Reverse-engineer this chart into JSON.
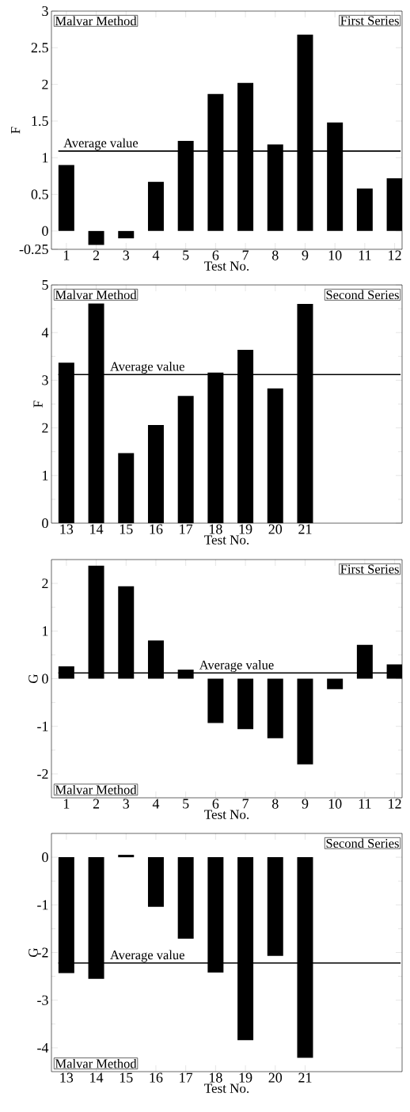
{
  "chart_data": [
    {
      "type": "bar",
      "xlabel": "Test No.",
      "ylabel": "F",
      "color": "#000000",
      "x": [
        1,
        2,
        3,
        4,
        5,
        6,
        7,
        8,
        9,
        10,
        11,
        12
      ],
      "values": [
        0.9,
        -0.19,
        -0.1,
        0.67,
        1.23,
        1.87,
        2.02,
        1.18,
        2.68,
        1.48,
        0.58,
        0.72
      ],
      "xlim": [
        0.5,
        12.25
      ],
      "ylim": [
        -0.25,
        3
      ],
      "xticks": [
        1,
        2,
        3,
        4,
        5,
        6,
        7,
        8,
        9,
        10,
        11,
        12
      ],
      "yticks": [
        -0.25,
        0,
        0.5,
        1,
        1.5,
        2,
        2.5,
        3
      ],
      "annotations": [
        "Malvar Method",
        "First Series"
      ],
      "ref_lines": [
        {
          "axis": "y",
          "value": 1.09,
          "label": "Average value"
        }
      ]
    },
    {
      "type": "bar",
      "xlabel": "Test No.",
      "ylabel": "F",
      "color": "#000000",
      "x": [
        13,
        14,
        15,
        16,
        17,
        18,
        19,
        20,
        21
      ],
      "values": [
        3.37,
        4.61,
        1.47,
        2.06,
        2.67,
        3.16,
        3.64,
        2.83,
        4.6
      ],
      "xlim": [
        12.5,
        24.25
      ],
      "ylim": [
        0,
        5
      ],
      "xticks": [
        13,
        14,
        15,
        16,
        17,
        18,
        19,
        20,
        21
      ],
      "yticks": [
        0,
        1,
        2,
        3,
        4,
        5
      ],
      "annotations": [
        "Malvar Method",
        "Second Series"
      ],
      "ref_lines": [
        {
          "axis": "y",
          "value": 3.12,
          "label": "Average value"
        }
      ]
    },
    {
      "type": "bar",
      "xlabel": "Test No.",
      "ylabel": "G",
      "color": "#000000",
      "x": [
        1,
        2,
        3,
        4,
        5,
        6,
        7,
        8,
        9,
        10,
        11,
        12
      ],
      "values": [
        0.26,
        2.37,
        1.94,
        0.8,
        0.19,
        -0.93,
        -1.06,
        -1.25,
        -1.8,
        -0.22,
        0.71,
        0.3
      ],
      "xlim": [
        0.5,
        12.25
      ],
      "ylim": [
        -2.5,
        2.5
      ],
      "xticks": [
        1,
        2,
        3,
        4,
        5,
        6,
        7,
        8,
        9,
        10,
        11,
        12
      ],
      "yticks": [
        -2,
        -1,
        0,
        1,
        2
      ],
      "annotations": [
        "Malvar Method",
        "First Series"
      ],
      "ref_lines": [
        {
          "axis": "y",
          "value": 0.12,
          "label": "Average value"
        }
      ]
    },
    {
      "type": "bar",
      "xlabel": "Test No.",
      "ylabel": "G",
      "color": "#000000",
      "x": [
        13,
        14,
        15,
        16,
        17,
        18,
        19,
        20,
        21
      ],
      "values": [
        -2.43,
        -2.55,
        0.05,
        -1.04,
        -1.71,
        -2.42,
        -3.84,
        -2.07,
        -4.21
      ],
      "xlim": [
        12.5,
        24.25
      ],
      "ylim": [
        -4.5,
        0.5
      ],
      "xticks": [
        13,
        14,
        15,
        16,
        17,
        18,
        19,
        20,
        21
      ],
      "yticks": [
        -4,
        -3,
        -2,
        -1,
        0
      ],
      "annotations": [
        "Malvar Method",
        "Second Series"
      ],
      "ref_lines": [
        {
          "axis": "y",
          "value": -2.22,
          "label": "Average value"
        }
      ]
    }
  ]
}
